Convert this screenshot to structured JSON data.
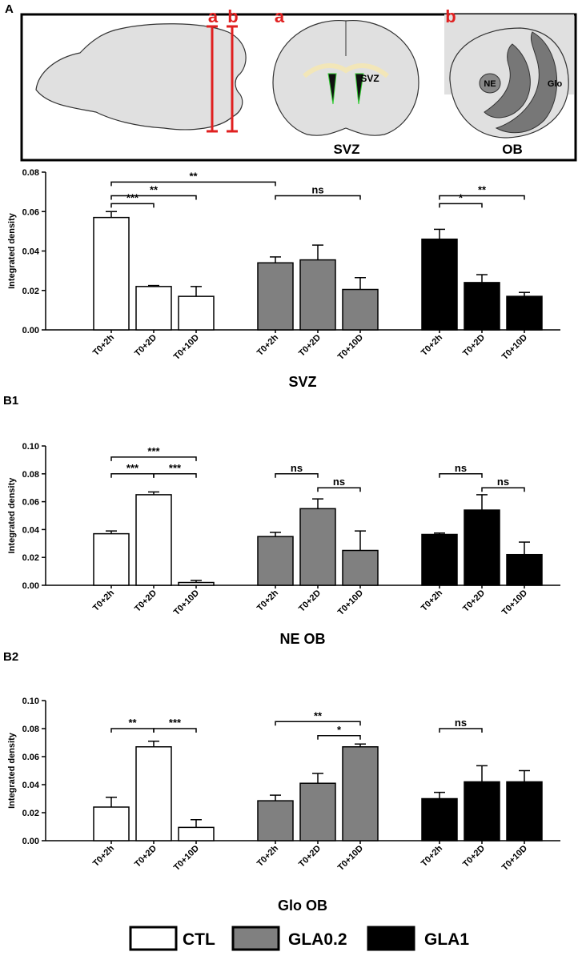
{
  "diagram": {
    "panel": "A",
    "cut_a": "a",
    "cut_b": "b",
    "svz_label": "SVZ",
    "svz_caption": "SVZ",
    "ne_label": "NE",
    "glo_label": "Glo",
    "ob_caption": "OB"
  },
  "chart_data": [
    {
      "type": "bar",
      "title": "SVZ",
      "y_label": "Integrated density",
      "categories": [
        "T0+2h",
        "T0+2D",
        "T0+10D"
      ],
      "series": [
        {
          "name": "CTL",
          "color": "#ffffff",
          "values": [
            0.057,
            0.022,
            0.017
          ],
          "errors": [
            0.003,
            0.0005,
            0.005
          ]
        },
        {
          "name": "GLA0.2",
          "color": "#808080",
          "values": [
            0.034,
            0.0355,
            0.0205
          ],
          "errors": [
            0.003,
            0.0075,
            0.006
          ]
        },
        {
          "name": "GLA1",
          "color": "#000000",
          "values": [
            0.046,
            0.024,
            0.017
          ],
          "errors": [
            0.005,
            0.004,
            0.002
          ]
        }
      ],
      "ylim": [
        0,
        0.08
      ],
      "yticks": [
        {
          "value": 0,
          "label": "0.00"
        },
        0.02,
        0.04,
        0.06,
        0.08
      ],
      "annotations": [
        {
          "text": "**",
          "bars": [
            0,
            3
          ],
          "y": 0.075
        },
        {
          "text": "**",
          "bars": [
            0,
            2
          ],
          "y": 0.068
        },
        {
          "text": "***",
          "bars": [
            0,
            1
          ],
          "y": 0.064
        },
        {
          "text": "ns",
          "bars": [
            3,
            5
          ],
          "y": 0.068
        },
        {
          "text": "**",
          "bars": [
            6,
            8
          ],
          "y": 0.068
        },
        {
          "text": "*",
          "bars": [
            6,
            7
          ],
          "y": 0.064
        }
      ]
    },
    {
      "type": "bar",
      "panel": "B1",
      "title": "NE OB",
      "y_label": "Integrated density",
      "categories": [
        "T0+2h",
        "T0+2D",
        "T0+10D"
      ],
      "series": [
        {
          "name": "CTL",
          "color": "#ffffff",
          "values": [
            0.037,
            0.065,
            0.002
          ],
          "errors": [
            0.002,
            0.002,
            0.0015
          ]
        },
        {
          "name": "GLA0.2",
          "color": "#808080",
          "values": [
            0.035,
            0.055,
            0.025
          ],
          "errors": [
            0.003,
            0.007,
            0.014
          ]
        },
        {
          "name": "GLA1",
          "color": "#000000",
          "values": [
            0.0365,
            0.054,
            0.022
          ],
          "errors": [
            0.001,
            0.011,
            0.009
          ]
        }
      ],
      "ylim": [
        0,
        0.1
      ],
      "yticks": [
        {
          "value": 0,
          "label": "0.00"
        },
        0.02,
        0.04,
        0.06,
        0.08,
        {
          "value": 0.1,
          "label": "0.10"
        }
      ],
      "annotations": [
        {
          "text": "***",
          "bars": [
            0,
            2
          ],
          "y": 0.092
        },
        {
          "text": "***",
          "bars": [
            0,
            1
          ],
          "y": 0.08
        },
        {
          "text": "***",
          "bars": [
            1,
            2
          ],
          "y": 0.08
        },
        {
          "text": "ns",
          "bars": [
            3,
            4
          ],
          "y": 0.08
        },
        {
          "text": "ns",
          "bars": [
            4,
            5
          ],
          "y": 0.07
        },
        {
          "text": "ns",
          "bars": [
            6,
            7
          ],
          "y": 0.08
        },
        {
          "text": "ns",
          "bars": [
            7,
            8
          ],
          "y": 0.07
        }
      ]
    },
    {
      "type": "bar",
      "panel": "B2",
      "title": "Glo OB",
      "y_label": "Integrated density",
      "categories": [
        "T0+2h",
        "T0+2D",
        "T0+10D"
      ],
      "series": [
        {
          "name": "CTL",
          "color": "#ffffff",
          "values": [
            0.024,
            0.067,
            0.0095
          ],
          "errors": [
            0.007,
            0.004,
            0.0055
          ]
        },
        {
          "name": "GLA0.2",
          "color": "#808080",
          "values": [
            0.0285,
            0.041,
            0.067
          ],
          "errors": [
            0.004,
            0.007,
            0.002
          ]
        },
        {
          "name": "GLA1",
          "color": "#000000",
          "values": [
            0.03,
            0.042,
            0.042
          ],
          "errors": [
            0.0045,
            0.0115,
            0.008
          ]
        }
      ],
      "ylim": [
        0,
        0.1
      ],
      "yticks": [
        {
          "value": 0,
          "label": "0.00"
        },
        0.02,
        0.04,
        0.06,
        0.08,
        {
          "value": 0.1,
          "label": "0.10"
        }
      ],
      "annotations": [
        {
          "text": "**",
          "bars": [
            0,
            1
          ],
          "y": 0.08
        },
        {
          "text": "***",
          "bars": [
            1,
            2
          ],
          "y": 0.08
        },
        {
          "text": "**",
          "bars": [
            3,
            5
          ],
          "y": 0.085
        },
        {
          "text": "*",
          "bars": [
            4,
            5
          ],
          "y": 0.075
        },
        {
          "text": "ns",
          "bars": [
            6,
            7
          ],
          "y": 0.08
        }
      ]
    }
  ]
}
